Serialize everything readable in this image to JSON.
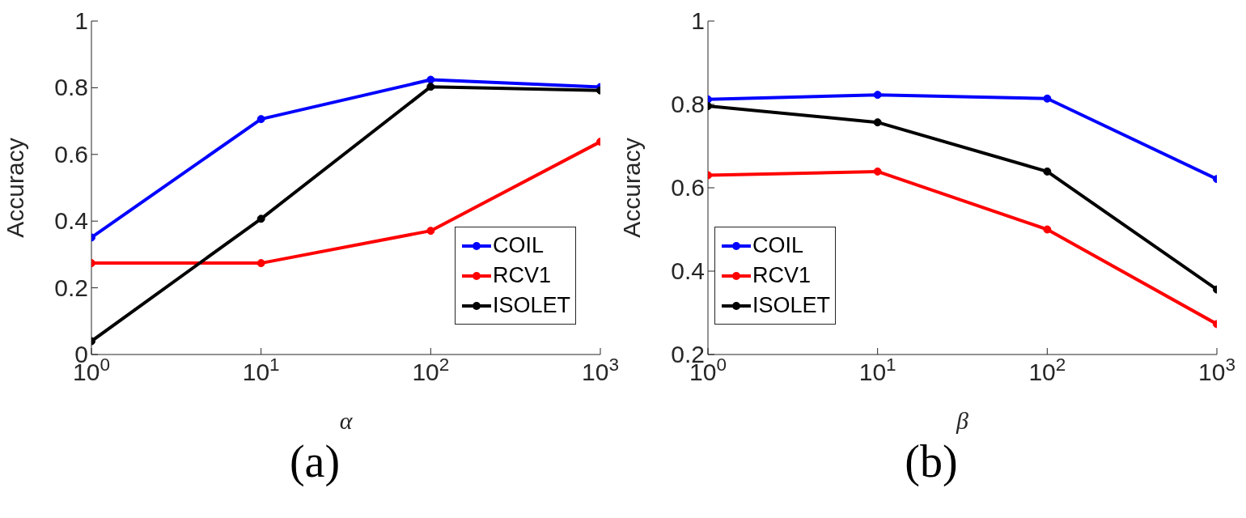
{
  "chart_data": [
    {
      "type": "line",
      "xlabel": "α",
      "ylabel": "Accuracy",
      "annotations": [
        "(a)"
      ],
      "x": [
        1,
        10,
        100,
        1000
      ],
      "log": "x",
      "xlim": [
        1,
        1000
      ],
      "xticks": [
        {
          "value": 1,
          "label": "10$^{0}$"
        },
        {
          "value": 10,
          "label": "10$^{1}$"
        },
        {
          "value": 100,
          "label": "10$^{2}$"
        },
        {
          "value": 1000,
          "label": "10$^{3}$"
        }
      ],
      "ylim": [
        0,
        1
      ],
      "yticks": [
        0,
        0.2,
        0.4,
        0.6,
        0.8,
        1
      ],
      "legend": "bottom right",
      "marker": "circle",
      "line_style": "solid",
      "series": [
        {
          "name": "COIL",
          "color": "#0000ff",
          "values": [
            0.351,
            0.706,
            0.824,
            0.802
          ]
        },
        {
          "name": "RCV1",
          "color": "#ff0000",
          "values": [
            0.274,
            0.274,
            0.371,
            0.638
          ]
        },
        {
          "name": "ISOLET",
          "color": "#000000",
          "values": [
            0.04,
            0.407,
            0.803,
            0.792
          ]
        }
      ]
    },
    {
      "type": "line",
      "xlabel": "β",
      "ylabel": "Accuracy",
      "annotations": [
        "(b)"
      ],
      "x": [
        1,
        10,
        100,
        1000
      ],
      "log": "x",
      "xlim": [
        1,
        1000
      ],
      "xticks": [
        {
          "value": 1,
          "label": "10$^{0}$"
        },
        {
          "value": 10,
          "label": "10$^{1}$"
        },
        {
          "value": 100,
          "label": "10$^{2}$"
        },
        {
          "value": 1000,
          "label": "10$^{3}$"
        }
      ],
      "ylim": [
        0.2,
        1
      ],
      "yticks": [
        0.2,
        0.4,
        0.6,
        0.8,
        1
      ],
      "legend": "bottom left",
      "marker": "circle",
      "line_style": "solid",
      "series": [
        {
          "name": "COIL",
          "color": "#0000ff",
          "values": [
            0.812,
            0.823,
            0.814,
            0.621
          ]
        },
        {
          "name": "RCV1",
          "color": "#ff0000",
          "values": [
            0.63,
            0.639,
            0.5,
            0.273
          ]
        },
        {
          "name": "ISOLET",
          "color": "#000000",
          "values": [
            0.796,
            0.757,
            0.639,
            0.356
          ]
        }
      ]
    }
  ]
}
